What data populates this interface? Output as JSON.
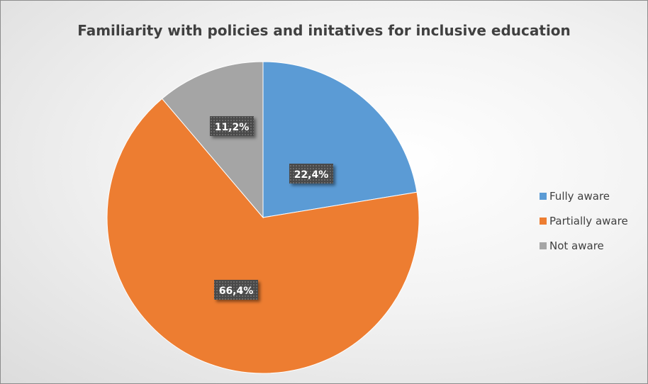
{
  "chart_data": {
    "type": "pie",
    "title": "Familiarity with policies and initatives for inclusive education",
    "categories": [
      "Fully aware",
      "Partially aware",
      "Not aware"
    ],
    "values": [
      22.4,
      66.4,
      11.2
    ],
    "data_labels": [
      "22,4%",
      "66,4%",
      "11,2%"
    ],
    "colors": [
      "#5b9bd5",
      "#ed7d31",
      "#a5a5a5"
    ],
    "legend_position": "right"
  }
}
